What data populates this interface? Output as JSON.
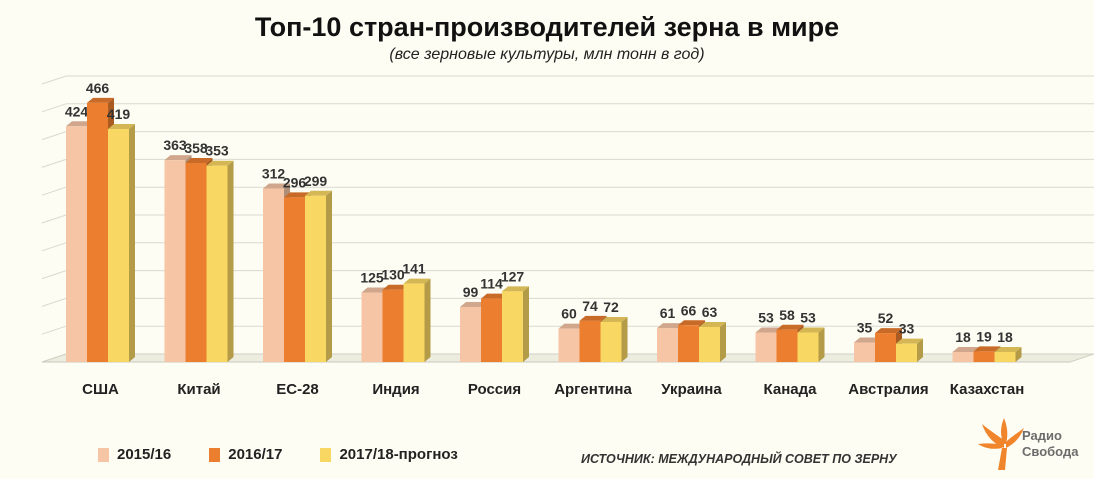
{
  "chart_data": {
    "type": "bar",
    "title": "Топ-10 стран-производителей зерна в мире",
    "subtitle": "(все зерновые культуры, млн тонн в год)",
    "categories": [
      "США",
      "Китай",
      "ЕС-28",
      "Индия",
      "Россия",
      "Аргентина",
      "Украина",
      "Канада",
      "Австралия",
      "Казахстан"
    ],
    "series": [
      {
        "name": "2015/16",
        "color": "#f5c5a6",
        "values": [
          424,
          363,
          312,
          125,
          99,
          60,
          61,
          53,
          35,
          18
        ]
      },
      {
        "name": "2016/17",
        "color": "#ec7e2f",
        "values": [
          466,
          358,
          296,
          130,
          114,
          74,
          66,
          58,
          52,
          19
        ]
      },
      {
        "name": "2017/18-прогноз",
        "color": "#f9d763",
        "values": [
          419,
          353,
          299,
          141,
          127,
          72,
          63,
          53,
          33,
          18
        ]
      }
    ],
    "ylim": [
      0,
      500
    ],
    "grid": true,
    "legend": "bottom-left"
  },
  "source": "ИСТОЧНИК: МЕЖДУНАРОДНЫЙ СОВЕТ ПО ЗЕРНУ",
  "logo": {
    "line1": "Радио",
    "line2": "Свобода",
    "icon": "radio-svoboda-torch-icon"
  }
}
